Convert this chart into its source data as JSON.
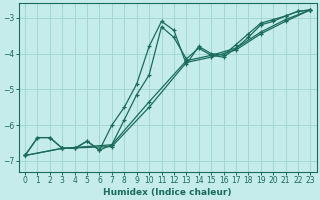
{
  "xlabel": "Humidex (Indice chaleur)",
  "bg_color": "#c5eceb",
  "grid_color": "#9dd4d0",
  "line_color": "#1a6b5a",
  "xlim": [
    -0.5,
    23.5
  ],
  "ylim": [
    -7.3,
    -2.6
  ],
  "xticks": [
    0,
    1,
    2,
    3,
    4,
    5,
    6,
    7,
    8,
    9,
    10,
    11,
    12,
    13,
    14,
    15,
    16,
    17,
    18,
    19,
    20,
    21,
    22,
    23
  ],
  "yticks": [
    -7,
    -6,
    -5,
    -4,
    -3
  ],
  "lines": [
    {
      "x": [
        0,
        1,
        2,
        3,
        4,
        5,
        6,
        7,
        8,
        9,
        10,
        11,
        12,
        13,
        14,
        15,
        16,
        17,
        18,
        19,
        20,
        21,
        22,
        23
      ],
      "y": [
        -6.85,
        -6.35,
        -6.35,
        -6.65,
        -6.65,
        -6.45,
        -6.7,
        -6.0,
        -5.5,
        -4.85,
        -3.8,
        -3.1,
        -3.35,
        -4.3,
        -3.8,
        -4.0,
        -4.05,
        -3.75,
        -3.45,
        -3.15,
        -3.05,
        -2.95,
        -2.82,
        -2.78
      ]
    },
    {
      "x": [
        0,
        3,
        7,
        10,
        13,
        15,
        17,
        19,
        21,
        23
      ],
      "y": [
        -6.85,
        -6.65,
        -6.55,
        -5.35,
        -4.2,
        -4.05,
        -3.85,
        -3.4,
        -3.05,
        -2.78
      ]
    },
    {
      "x": [
        0,
        3,
        7,
        10,
        13,
        15,
        17,
        19,
        21,
        23
      ],
      "y": [
        -6.85,
        -6.65,
        -6.6,
        -5.5,
        -4.25,
        -4.1,
        -3.9,
        -3.45,
        -3.1,
        -2.78
      ]
    },
    {
      "x": [
        0,
        1,
        2,
        3,
        4,
        5,
        6,
        7,
        8,
        9,
        10,
        11,
        12,
        13,
        14,
        15,
        16,
        17,
        18,
        19,
        20,
        21,
        22,
        23
      ],
      "y": [
        -6.85,
        -6.35,
        -6.35,
        -6.65,
        -6.65,
        -6.45,
        -6.7,
        -6.55,
        -5.85,
        -5.15,
        -4.6,
        -3.25,
        -3.55,
        -4.15,
        -3.85,
        -4.05,
        -4.1,
        -3.85,
        -3.55,
        -3.2,
        -3.1,
        -2.95,
        -2.82,
        -2.78
      ]
    }
  ]
}
